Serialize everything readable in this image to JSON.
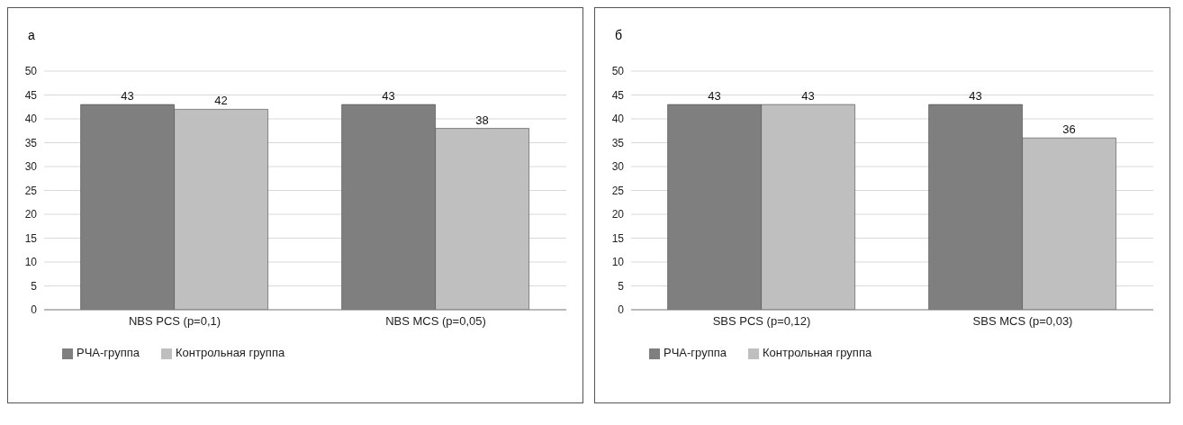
{
  "chart_data": [
    {
      "type": "bar",
      "title": "а",
      "categories": [
        "NBS PCS (p=0,1)",
        "NBS MCS (p=0,05)"
      ],
      "series": [
        {
          "name": "РЧА-группа",
          "color": "#7f7f7f",
          "values": [
            43,
            43
          ]
        },
        {
          "name": "Контрольная группа",
          "color": "#bfbfbf",
          "values": [
            42,
            38
          ]
        }
      ],
      "ylim": [
        0,
        50
      ],
      "yticks": [
        0,
        5,
        10,
        15,
        20,
        25,
        30,
        35,
        40,
        45,
        50
      ],
      "grid": "y",
      "legend": "bottom left",
      "data_labels": true
    },
    {
      "type": "bar",
      "title": "б",
      "categories": [
        "SBS PCS (p=0,12)",
        "SBS MCS (p=0,03)"
      ],
      "series": [
        {
          "name": "РЧА-группа",
          "color": "#7f7f7f",
          "values": [
            43,
            43
          ]
        },
        {
          "name": "Контрольная группа",
          "color": "#bfbfbf",
          "values": [
            43,
            36
          ]
        }
      ],
      "ylim": [
        0,
        50
      ],
      "yticks": [
        0,
        5,
        10,
        15,
        20,
        25,
        30,
        35,
        40,
        45,
        50
      ],
      "grid": "y",
      "legend": "bottom left",
      "data_labels": true
    }
  ]
}
